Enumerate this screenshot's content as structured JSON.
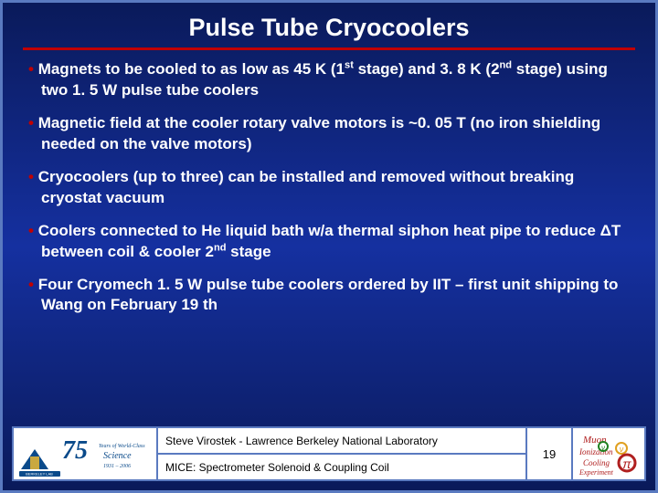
{
  "title": "Pulse Tube Cryocoolers",
  "bullets": [
    "Magnets to be cooled to as low as 45 K (1<sup>st</sup> stage) and 3. 8 K (2<sup>nd</sup> stage) using two 1. 5 W pulse tube coolers",
    "Magnetic field at the cooler rotary valve motors is ~0. 05 T (no iron shielding needed on the valve motors)",
    "Cryocoolers (up to three) can be installed and removed without breaking cryostat vacuum",
    "Coolers connected to He liquid bath w/a thermal siphon heat pipe to reduce ΔT between coil & cooler 2<sup>nd</sup> stage",
    "Four Cryomech 1. 5 W pulse tube coolers ordered by IIT – first unit shipping to Wang on February 19 th"
  ],
  "footer": {
    "author": "Steve Virostek - Lawrence Berkeley National Laboratory",
    "project": "MICE: Spectrometer Solenoid & Coupling Coil",
    "page": "19"
  },
  "colors": {
    "bg_top": "#0a1a5a",
    "bg_mid": "#1530a0",
    "border": "#5a7ac0",
    "title_color": "#ffffff",
    "bullet_mark": "#c00000",
    "hr": "#c00000",
    "text": "#ffffff",
    "footer_bg": "#ffffff",
    "footer_text": "#000000"
  },
  "fonts": {
    "title_family": "Comic Sans MS",
    "title_size_pt": 20,
    "body_family": "Verdana",
    "body_size_pt": 13,
    "footer_family": "Comic Sans MS",
    "footer_size_pt": 9
  }
}
